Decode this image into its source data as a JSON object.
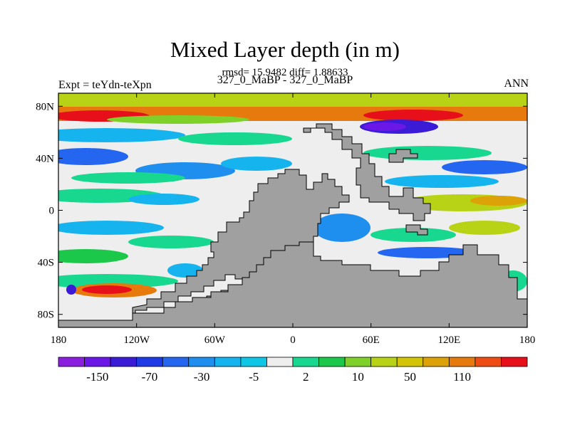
{
  "chart_data": {
    "type": "heatmap",
    "title": "Mixed Layer depth (in m)",
    "stats_line": "rmsd= 15.9482 diff= 1.88633",
    "subtitle": "327_0_MaBP - 327_0_MaBP",
    "left_label": "Expt = teYdn-teXpn",
    "right_label": "ANN",
    "x_ticks": [
      "180",
      "120W",
      "60W",
      "0",
      "60E",
      "120E",
      "180"
    ],
    "y_ticks": [
      "80N",
      "40N",
      "0",
      "40S",
      "80S"
    ],
    "xlim": [
      -180,
      180
    ],
    "ylim": [
      -90,
      90
    ],
    "colorbar": {
      "colors": [
        "#8b1fe0",
        "#6a17e8",
        "#3b1bd6",
        "#1f3be6",
        "#2466f0",
        "#1e8fef",
        "#16b4ef",
        "#0ec6e6",
        "#eeeeee",
        "#18d78f",
        "#1bc84a",
        "#7fd12a",
        "#b8d215",
        "#d4c407",
        "#dca207",
        "#e77a0c",
        "#ef4c14",
        "#e60f1a"
      ],
      "labels": [
        "-150",
        "-70",
        "-30",
        "-5",
        "2",
        "10",
        "50",
        "110"
      ],
      "label_positions": [
        1,
        3,
        5,
        7,
        9,
        11,
        13,
        15
      ]
    },
    "land_color": "#a0a0a0",
    "field_description": "Difference in mixed layer depth; strong positive band near 70N, largely negative bands in the North Pacific and South Pacific, near-zero in tropics."
  }
}
